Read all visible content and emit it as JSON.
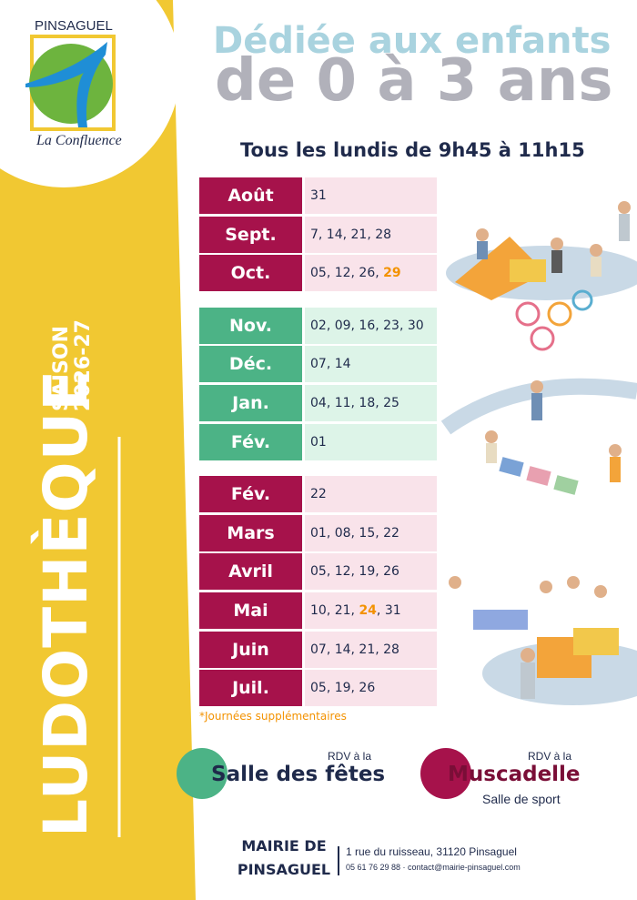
{
  "logo": {
    "top": "PINSAGUEL",
    "bottom": "La Confluence"
  },
  "side": {
    "title": "LUDOTHÈQUE",
    "season": "SAISON",
    "years": "2026-27"
  },
  "header": {
    "line1": "Dédiée aux enfants",
    "line2": "de 0 à 3 ans",
    "schedule": "Tous les lundis de 9h45 à 11h15"
  },
  "table": {
    "groups": [
      {
        "month_color": "#a6124b",
        "dates_color": "#f9e3ea",
        "rows": [
          {
            "month": "Août",
            "dates": [
              {
                "text": "31"
              }
            ]
          },
          {
            "month": "Sept.",
            "dates": [
              {
                "text": "7, 14, 21, 28"
              }
            ]
          },
          {
            "month": "Oct.",
            "dates": [
              {
                "text": "05, 12, 26, "
              },
              {
                "text": "29",
                "color": "#f39200"
              }
            ]
          }
        ]
      },
      {
        "month_color": "#4cb386",
        "dates_color": "#ddf4e8",
        "rows": [
          {
            "month": "Nov.",
            "dates": [
              {
                "text": "02, 09, 16, 23, 30"
              }
            ]
          },
          {
            "month": "Déc.",
            "dates": [
              {
                "text": "07, 14"
              }
            ]
          },
          {
            "month": "Jan.",
            "dates": [
              {
                "text": "04, 11, 18, 25"
              }
            ]
          },
          {
            "month": "Fév.",
            "dates": [
              {
                "text": "01"
              }
            ]
          }
        ]
      },
      {
        "month_color": "#a6124b",
        "dates_color": "#f9e3ea",
        "rows": [
          {
            "month": "Fév.",
            "dates": [
              {
                "text": "22"
              }
            ]
          },
          {
            "month": "Mars",
            "dates": [
              {
                "text": "01, 08, 15, 22"
              }
            ]
          },
          {
            "month": "Avril",
            "dates": [
              {
                "text": "05, 12, 19, 26"
              }
            ]
          },
          {
            "month": "Mai",
            "dates": [
              {
                "text": "10, 21, "
              },
              {
                "text": "24",
                "color": "#f39200"
              },
              {
                "text": ", 31"
              }
            ]
          },
          {
            "month": "Juin",
            "dates": [
              {
                "text": "07, 14, 21, 28"
              }
            ]
          },
          {
            "month": "Juil.",
            "dates": [
              {
                "text": "05, 19, 26"
              }
            ]
          }
        ]
      }
    ]
  },
  "note": {
    "text": "*Journées supplémentaires",
    "color": "#f39200"
  },
  "venues": [
    {
      "prefix": "RDV à la",
      "name": "Salle des fêtes",
      "color": "#4cb386"
    },
    {
      "prefix": "RDV à la",
      "name": "Muscadelle",
      "detail": "Salle de sport",
      "color": "#a6124b"
    }
  ],
  "footer": {
    "name_line1": "MAIRIE DE",
    "name_line2": "PINSAGUEL",
    "address": "1 rue du ruisseau, 31120 Pinsaguel",
    "contact": "05 61 76 29 88 · contact@mairie-pinsaguel.com"
  }
}
